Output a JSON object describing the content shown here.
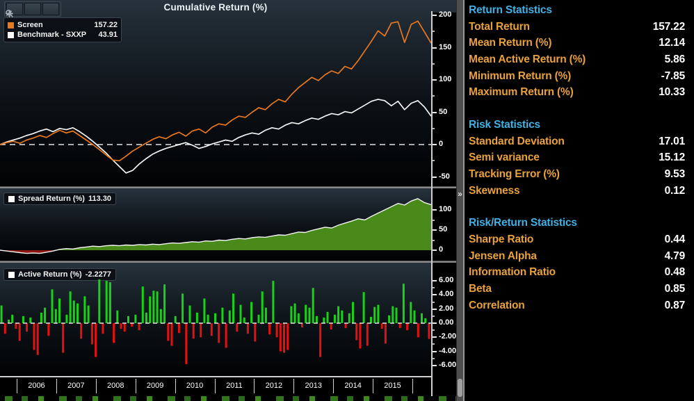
{
  "title": "Cumulative Return (%)",
  "splitter": {
    "chevron": "»"
  },
  "toolbar": {
    "buttons": [
      {
        "name": "pan-tool",
        "icon": "move-icon"
      },
      {
        "name": "draw-tool",
        "icon": "pencil-icon"
      },
      {
        "name": "zoom-tool",
        "icon": "magnifier-icon"
      }
    ]
  },
  "cumulative_pane": {
    "legend": [
      {
        "label": "Screen",
        "value": "157.22",
        "swatch": "#e8781e"
      },
      {
        "label": "Benchmark - SXXP",
        "value": "43.91",
        "swatch": "#ffffff"
      }
    ],
    "ticks": [
      {
        "v": 200,
        "label": "200"
      },
      {
        "v": 150,
        "label": "150"
      },
      {
        "v": 100,
        "label": "100"
      },
      {
        "v": 50,
        "label": "50"
      },
      {
        "v": 0,
        "label": "0"
      },
      {
        "v": -50,
        "label": "-50"
      }
    ]
  },
  "spread_pane": {
    "legend_label": "Spread Return (%)",
    "legend_value": "113.30",
    "swatch": "#ffffff",
    "ticks": [
      {
        "v": 100,
        "label": "100"
      },
      {
        "v": 50,
        "label": "50"
      },
      {
        "v": 0,
        "label": "0"
      }
    ]
  },
  "active_pane": {
    "legend_label": "Active Return (%)",
    "legend_value": "-2.2277",
    "swatch": "#ffffff",
    "ticks": [
      {
        "v": 6,
        "label": "6.00"
      },
      {
        "v": 4,
        "label": "4.00"
      },
      {
        "v": 2,
        "label": "2.00"
      },
      {
        "v": 0,
        "label": "0.00"
      },
      {
        "v": -2,
        "label": "-2.00"
      },
      {
        "v": -4,
        "label": "-4.00"
      },
      {
        "v": -6,
        "label": "-6.00"
      }
    ]
  },
  "x_axis": {
    "years": [
      "2006",
      "2007",
      "2008",
      "2009",
      "2010",
      "2011",
      "2012",
      "2013",
      "2014",
      "2015"
    ]
  },
  "stats_panel": {
    "sections": [
      {
        "heading": "Return Statistics",
        "rows": [
          {
            "label": "Total Return",
            "value": "157.22"
          },
          {
            "label": "Mean Return (%)",
            "value": "12.14"
          },
          {
            "label": "Mean Active Return (%)",
            "value": "5.86"
          },
          {
            "label": "Minimum Return (%)",
            "value": "-7.85"
          },
          {
            "label": "Maximum Return (%)",
            "value": "10.33"
          }
        ]
      },
      {
        "heading": "Risk Statistics",
        "rows": [
          {
            "label": "Standard Deviation",
            "value": "17.01"
          },
          {
            "label": "Semi variance",
            "value": "15.12"
          },
          {
            "label": "Tracking Error (%)",
            "value": "9.53"
          },
          {
            "label": "Skewness",
            "value": "0.12"
          }
        ]
      },
      {
        "heading": "Risk/Return Statistics",
        "rows": [
          {
            "label": "Sharpe Ratio",
            "value": "0.44"
          },
          {
            "label": "Jensen Alpha",
            "value": "4.79"
          },
          {
            "label": "Information Ratio",
            "value": "0.48"
          },
          {
            "label": "Beta",
            "value": "0.85"
          },
          {
            "label": "Correlation",
            "value": "0.87"
          }
        ]
      }
    ]
  },
  "chart_data": [
    {
      "type": "line",
      "title": "Cumulative Return (%)",
      "x_range": [
        "2006",
        "2015"
      ],
      "ylim": [
        -50,
        200
      ],
      "legend_position": "top-left",
      "series": [
        {
          "name": "Screen",
          "color": "#e8781e",
          "final": 157.22,
          "values": [
            0,
            3,
            5,
            2,
            7,
            10,
            14,
            11,
            17,
            22,
            18,
            21,
            14,
            7,
            0,
            -8,
            -16,
            -24,
            -25,
            -18,
            -10,
            -4,
            2,
            8,
            12,
            9,
            15,
            19,
            13,
            21,
            24,
            18,
            27,
            32,
            30,
            38,
            44,
            42,
            50,
            57,
            54,
            63,
            70,
            66,
            78,
            88,
            96,
            104,
            99,
            108,
            114,
            110,
            121,
            117,
            130,
            145,
            160,
            176,
            168,
            188,
            190,
            158,
            186,
            191,
            174,
            157
          ]
        },
        {
          "name": "Benchmark - SXXP",
          "color": "#f5f5f5",
          "final": 43.91,
          "values": [
            0,
            4,
            7,
            10,
            14,
            17,
            21,
            24,
            20,
            25,
            23,
            26,
            20,
            13,
            5,
            -4,
            -13,
            -24,
            -34,
            -44,
            -40,
            -30,
            -22,
            -15,
            -10,
            -6,
            -3,
            0,
            3,
            -1,
            -6,
            -3,
            1,
            4,
            7,
            5,
            11,
            15,
            18,
            16,
            22,
            26,
            24,
            30,
            34,
            32,
            37,
            41,
            39,
            44,
            48,
            46,
            51,
            49,
            55,
            61,
            67,
            70,
            68,
            60,
            67,
            54,
            64,
            68,
            58,
            44
          ]
        }
      ]
    },
    {
      "type": "area",
      "title": "Spread Return (%)",
      "final": 113.3,
      "x_range": [
        "2006",
        "2015"
      ],
      "ylim": [
        -15,
        130
      ],
      "positive_color": "#4a8a1a",
      "negative_color": "#8c1710",
      "line_color": "#f5f5f5",
      "values": [
        0,
        -2,
        -4,
        -6,
        -8,
        -7,
        -8,
        -5,
        -2,
        2,
        4,
        3,
        6,
        8,
        10,
        9,
        11,
        12,
        11,
        13,
        12,
        14,
        13,
        15,
        14,
        16,
        18,
        17,
        19,
        21,
        20,
        23,
        22,
        25,
        24,
        27,
        29,
        28,
        31,
        33,
        32,
        35,
        38,
        37,
        41,
        45,
        44,
        49,
        53,
        57,
        55,
        62,
        67,
        72,
        78,
        75,
        84,
        92,
        100,
        108,
        116,
        112,
        122,
        128,
        118,
        113
      ]
    },
    {
      "type": "bar",
      "title": "Active Return (%)",
      "final": -2.2277,
      "x_range": [
        "2006",
        "2015"
      ],
      "ylim": [
        -7,
        7
      ],
      "positive_color": "#1ad11a",
      "negative_color": "#e31212",
      "values": [
        2.5,
        -1.5,
        0.5,
        1.2,
        -0.8,
        -2.5,
        1.0,
        -1.2,
        0.8,
        -3.8,
        -4.5,
        1.5,
        2.2,
        -1.8,
        4.8,
        2.0,
        3.5,
        -4.2,
        1.2,
        4.5,
        3.2,
        2.8,
        -2.2,
        3.8,
        2.5,
        -3.0,
        -4.8,
        6.2,
        -1.5,
        6.0,
        5.8,
        -2.8,
        1.8,
        -0.8,
        -1.2,
        1.0,
        -0.5,
        1.2,
        -1.0,
        5.2,
        1.5,
        3.8,
        4.6,
        4.5,
        2.0,
        5.5,
        -2.5,
        -3.2,
        1.0,
        -1.4,
        4.2,
        -5.8,
        2.5,
        -2.2,
        1.5,
        -2.0,
        3.5,
        1.2,
        -1.8,
        1.4,
        -2.8,
        2.2,
        -3.5,
        1.8,
        4.2,
        -1.2,
        2.6,
        0.8,
        -1.5,
        3.0,
        -2.6,
        1.2,
        4.5,
        2.2,
        -1.6,
        6.0,
        -2.0,
        -4.0,
        -4.2,
        -3.8,
        2.4,
        2.8,
        1.4,
        -0.6,
        2.6,
        2.2,
        5.0,
        1.0,
        -4.8,
        0.8,
        1.6,
        -0.9,
        1.2,
        2.4,
        1.8,
        -0.7,
        1.4,
        3.0,
        -2.4,
        -3.6,
        4.4,
        -3.2,
        0.9,
        2.3,
        2.6,
        -0.8,
        -2.9,
        1.1,
        2.4,
        2.2,
        -0.7,
        5.6,
        -1.0,
        3.0,
        1.8,
        -2.0,
        1.4,
        0.7,
        -2.2277
      ]
    }
  ]
}
